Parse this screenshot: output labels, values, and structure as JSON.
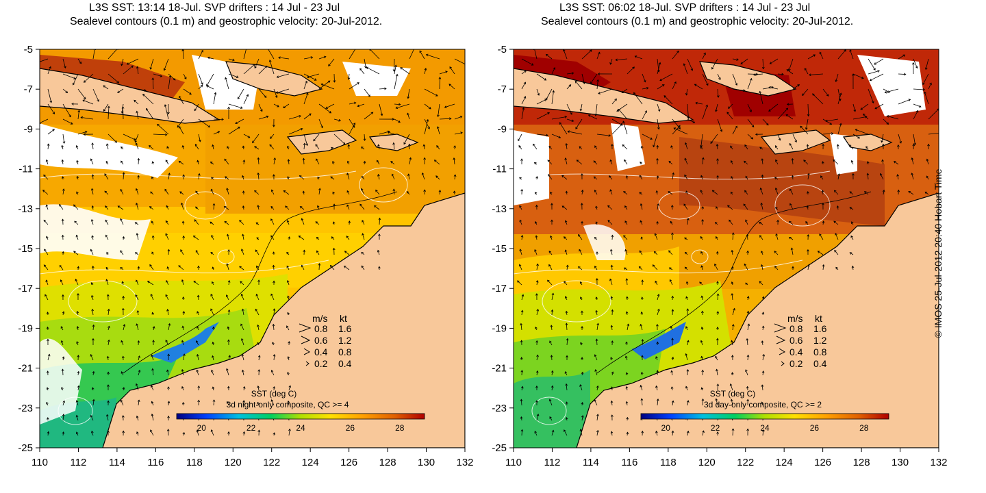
{
  "panels": [
    {
      "title_line1": "L3S SST: 13:14 18-Jul. SVP drifters : 14 Jul - 23 Jul",
      "title_line2": "Sealevel contours (0.1 m) and geostrophic velocity: 20-Jul-2012.",
      "colorbar_title": "SST (deg C)",
      "colorbar_subtitle": "3d night-only composite, QC >= 4",
      "colorbar_ticks": [
        "20",
        "22",
        "24",
        "26",
        "28"
      ],
      "sst_pattern": "night"
    },
    {
      "title_line1": "L3S SST: 06:02 18-Jul. SVP drifters : 14 Jul - 23 Jul",
      "title_line2": "Sealevel contours (0.1 m) and geostrophic velocity: 20-Jul-2012.",
      "colorbar_title": "SST (deg C)",
      "colorbar_subtitle": "3d day-only composite, QC >= 2",
      "colorbar_ticks": [
        "20",
        "22",
        "24",
        "26",
        "28"
      ],
      "sst_pattern": "day"
    }
  ],
  "axes": {
    "x_ticks": [
      "110",
      "112",
      "114",
      "116",
      "118",
      "120",
      "122",
      "124",
      "126",
      "128",
      "130",
      "132"
    ],
    "y_ticks": [
      "-5",
      "-7",
      "-9",
      "-11",
      "-13",
      "-15",
      "-17",
      "-19",
      "-21",
      "-23",
      "-25"
    ]
  },
  "velocity_legend": {
    "header_ms": "m/s",
    "header_kt": "kt",
    "rows": [
      {
        "ms": "0.8",
        "kt": "1.6"
      },
      {
        "ms": "0.6",
        "kt": "1.2"
      },
      {
        "ms": "0.4",
        "kt": "0.8"
      },
      {
        "ms": "0.2",
        "kt": "0.4"
      }
    ]
  },
  "credit": "© IMOS 25-Jul-2012 20:40 Hobart Time",
  "colors": {
    "land": "#f8c89a",
    "coastline": "#000000",
    "sealevel_contour": "#ffffff",
    "colorbar": [
      "#00007f",
      "#0040ff",
      "#00c0e0",
      "#00d060",
      "#b0e000",
      "#ffe000",
      "#ffa000",
      "#e06000",
      "#b00000"
    ]
  }
}
